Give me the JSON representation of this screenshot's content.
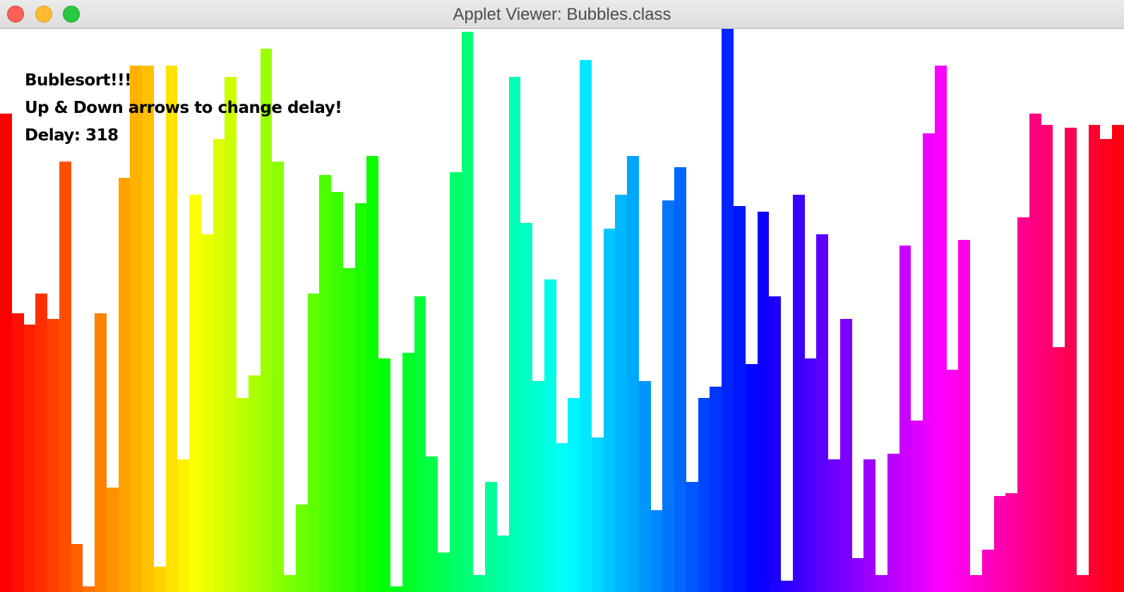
{
  "window": {
    "title": "Applet Viewer: Bubbles.class"
  },
  "applet": {
    "line1": "Bublesort!!!",
    "line2": "Up & Down arrows to change delay!",
    "delay_label": "Delay:",
    "delay_value": "318"
  },
  "chart_data": {
    "type": "bar",
    "description_of_values": "bar heights as fraction of applet height, left to right",
    "values": [
      0.85,
      0.495,
      0.475,
      0.53,
      0.485,
      0.765,
      0.085,
      0.01,
      0.495,
      0.185,
      0.735,
      0.935,
      0.935,
      0.045,
      0.935,
      0.235,
      0.705,
      0.635,
      0.805,
      0.915,
      0.345,
      0.385,
      0.965,
      0.765,
      0.03,
      0.155,
      0.53,
      0.74,
      0.71,
      0.575,
      0.69,
      0.775,
      0.415,
      0.01,
      0.425,
      0.525,
      0.24,
      0.07,
      0.745,
      0.995,
      0.03,
      0.195,
      0.1,
      0.915,
      0.655,
      0.375,
      0.555,
      0.265,
      0.345,
      0.945,
      0.275,
      0.645,
      0.705,
      0.775,
      0.375,
      0.145,
      0.695,
      0.755,
      0.195,
      0.345,
      0.365,
      1.0,
      0.685,
      0.405,
      0.675,
      0.525,
      0.02,
      0.705,
      0.415,
      0.635,
      0.235,
      0.485,
      0.06,
      0.235,
      0.03,
      0.245,
      0.615,
      0.305,
      0.815,
      0.935,
      0.395,
      0.625,
      0.03,
      0.075,
      0.17,
      0.175,
      0.665,
      0.85,
      0.83,
      0.435,
      0.825,
      0.03,
      0.83,
      0.805,
      0.83
    ],
    "hue_colors": true
  }
}
